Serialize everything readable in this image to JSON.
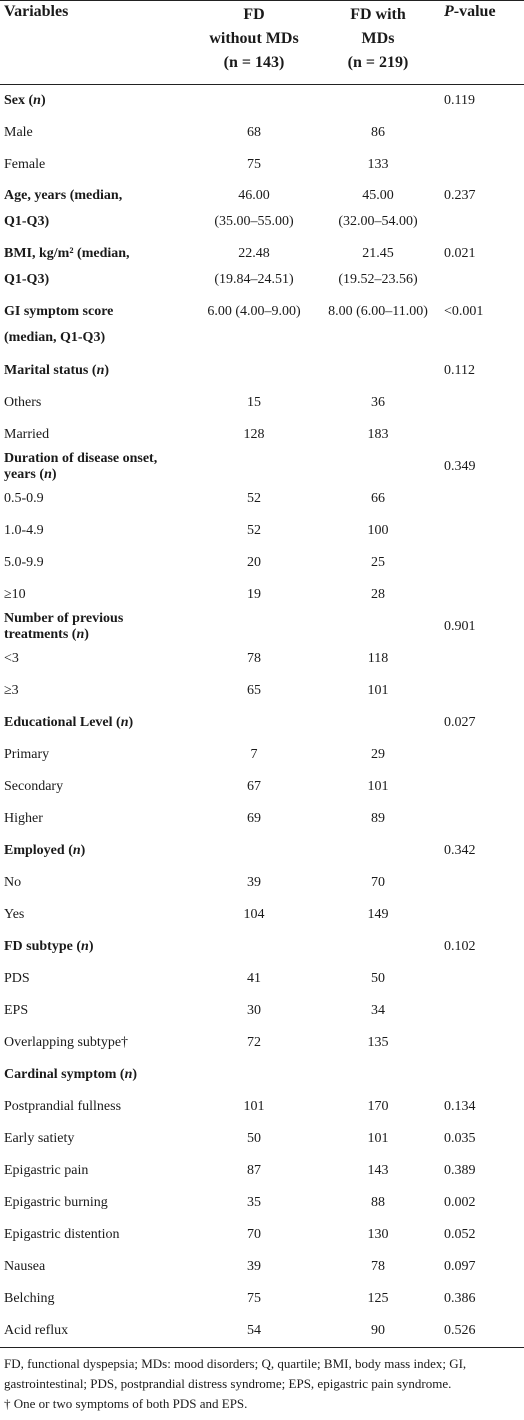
{
  "header": {
    "variables": "Variables",
    "fd_without_line1": "FD",
    "fd_without_line2": "without MDs",
    "fd_without_n": "(n = 143)",
    "fd_with_line1": "FD with",
    "fd_with_line2": "MDs",
    "fd_with_n": "(n = 219)",
    "pvalue_p": "P",
    "pvalue_rest": "-value"
  },
  "rows": [
    {
      "type": "section",
      "label": "Sex",
      "suffix": " (n)",
      "a": "",
      "b": "",
      "p": "0.119"
    },
    {
      "type": "item",
      "label": "Male",
      "a": "68",
      "b": "86",
      "p": ""
    },
    {
      "type": "item",
      "label": "Female",
      "a": "75",
      "b": "133",
      "p": ""
    },
    {
      "type": "section2",
      "label": "Age, years (median,",
      "label2": "Q1-Q3)",
      "a": "46.00",
      "a2": "(35.00–55.00)",
      "b": "45.00",
      "b2": "(32.00–54.00)",
      "p": "0.237"
    },
    {
      "type": "section2",
      "label": "BMI, kg/m² (median,",
      "label2": "Q1-Q3)",
      "a": "22.48",
      "a2": "(19.84–24.51)",
      "b": "21.45",
      "b2": "(19.52–23.56)",
      "p": "0.021"
    },
    {
      "type": "section2",
      "label": "GI symptom score",
      "label2": "(median, Q1-Q3)",
      "a": "6.00 (4.00–9.00)",
      "a2": "",
      "b": "8.00 (6.00–11.00)",
      "b2": "",
      "p": "<0.001"
    },
    {
      "type": "section",
      "label": "Marital status",
      "suffix": " (n)",
      "a": "",
      "b": "",
      "p": "0.112"
    },
    {
      "type": "item",
      "label": "Others",
      "a": "15",
      "b": "36",
      "p": ""
    },
    {
      "type": "item",
      "label": "Married",
      "a": "128",
      "b": "183",
      "p": ""
    },
    {
      "type": "section",
      "label": "Duration of disease onset, years",
      "suffix": " (n)",
      "a": "",
      "b": "",
      "p": "0.349"
    },
    {
      "type": "item",
      "label": "0.5-0.9",
      "a": "52",
      "b": "66",
      "p": ""
    },
    {
      "type": "item",
      "label": "1.0-4.9",
      "a": "52",
      "b": "100",
      "p": ""
    },
    {
      "type": "item",
      "label": "5.0-9.9",
      "a": "20",
      "b": "25",
      "p": ""
    },
    {
      "type": "item",
      "label": "≥10",
      "a": "19",
      "b": "28",
      "p": ""
    },
    {
      "type": "section",
      "label": "Number of previous treatments",
      "suffix": " (n)",
      "a": "",
      "b": "",
      "p": "0.901"
    },
    {
      "type": "item",
      "label": "<3",
      "a": "78",
      "b": "118",
      "p": ""
    },
    {
      "type": "item",
      "label": "≥3",
      "a": "65",
      "b": "101",
      "p": ""
    },
    {
      "type": "section",
      "label": "Educational Level",
      "suffix": " (n)",
      "a": "",
      "b": "",
      "p": "0.027"
    },
    {
      "type": "item",
      "label": "Primary",
      "a": "7",
      "b": "29",
      "p": ""
    },
    {
      "type": "item",
      "label": "Secondary",
      "a": "67",
      "b": "101",
      "p": ""
    },
    {
      "type": "item",
      "label": "Higher",
      "a": "69",
      "b": "89",
      "p": ""
    },
    {
      "type": "section",
      "label": "Employed",
      "suffix": " (n)",
      "a": "",
      "b": "",
      "p": "0.342"
    },
    {
      "type": "item",
      "label": "No",
      "a": "39",
      "b": "70",
      "p": ""
    },
    {
      "type": "item",
      "label": "Yes",
      "a": "104",
      "b": "149",
      "p": ""
    },
    {
      "type": "section",
      "label": "FD subtype",
      "suffix": " (n)",
      "a": "",
      "b": "",
      "p": "0.102"
    },
    {
      "type": "item",
      "label": "PDS",
      "a": "41",
      "b": "50",
      "p": ""
    },
    {
      "type": "item",
      "label": "EPS",
      "a": "30",
      "b": "34",
      "p": ""
    },
    {
      "type": "item",
      "label": "Overlapping subtype†",
      "a": "72",
      "b": "135",
      "p": ""
    },
    {
      "type": "section",
      "label": "Cardinal symptom",
      "suffix": " (n)",
      "a": "",
      "b": "",
      "p": ""
    },
    {
      "type": "item",
      "label": "Postprandial fullness",
      "a": "101",
      "b": "170",
      "p": "0.134"
    },
    {
      "type": "item",
      "label": "Early satiety",
      "a": "50",
      "b": "101",
      "p": "0.035"
    },
    {
      "type": "item",
      "label": "Epigastric pain",
      "a": "87",
      "b": "143",
      "p": "0.389"
    },
    {
      "type": "item",
      "label": "Epigastric burning",
      "a": "35",
      "b": "88",
      "p": "0.002"
    },
    {
      "type": "item",
      "label": "Epigastric distention",
      "a": "70",
      "b": "130",
      "p": "0.052"
    },
    {
      "type": "item",
      "label": "Nausea",
      "a": "39",
      "b": "78",
      "p": "0.097"
    },
    {
      "type": "item",
      "label": "Belching",
      "a": "75",
      "b": "125",
      "p": "0.386"
    },
    {
      "type": "item",
      "label": "Acid reflux",
      "a": "54",
      "b": "90",
      "p": "0.526"
    }
  ],
  "footnote": {
    "line1": "FD, functional dyspepsia; MDs: mood disorders; Q, quartile; BMI, body mass index; GI, gastrointestinal; PDS, postprandial distress syndrome; EPS, epigastric pain syndrome.",
    "line2": "† One or two symptoms of both PDS and EPS."
  }
}
